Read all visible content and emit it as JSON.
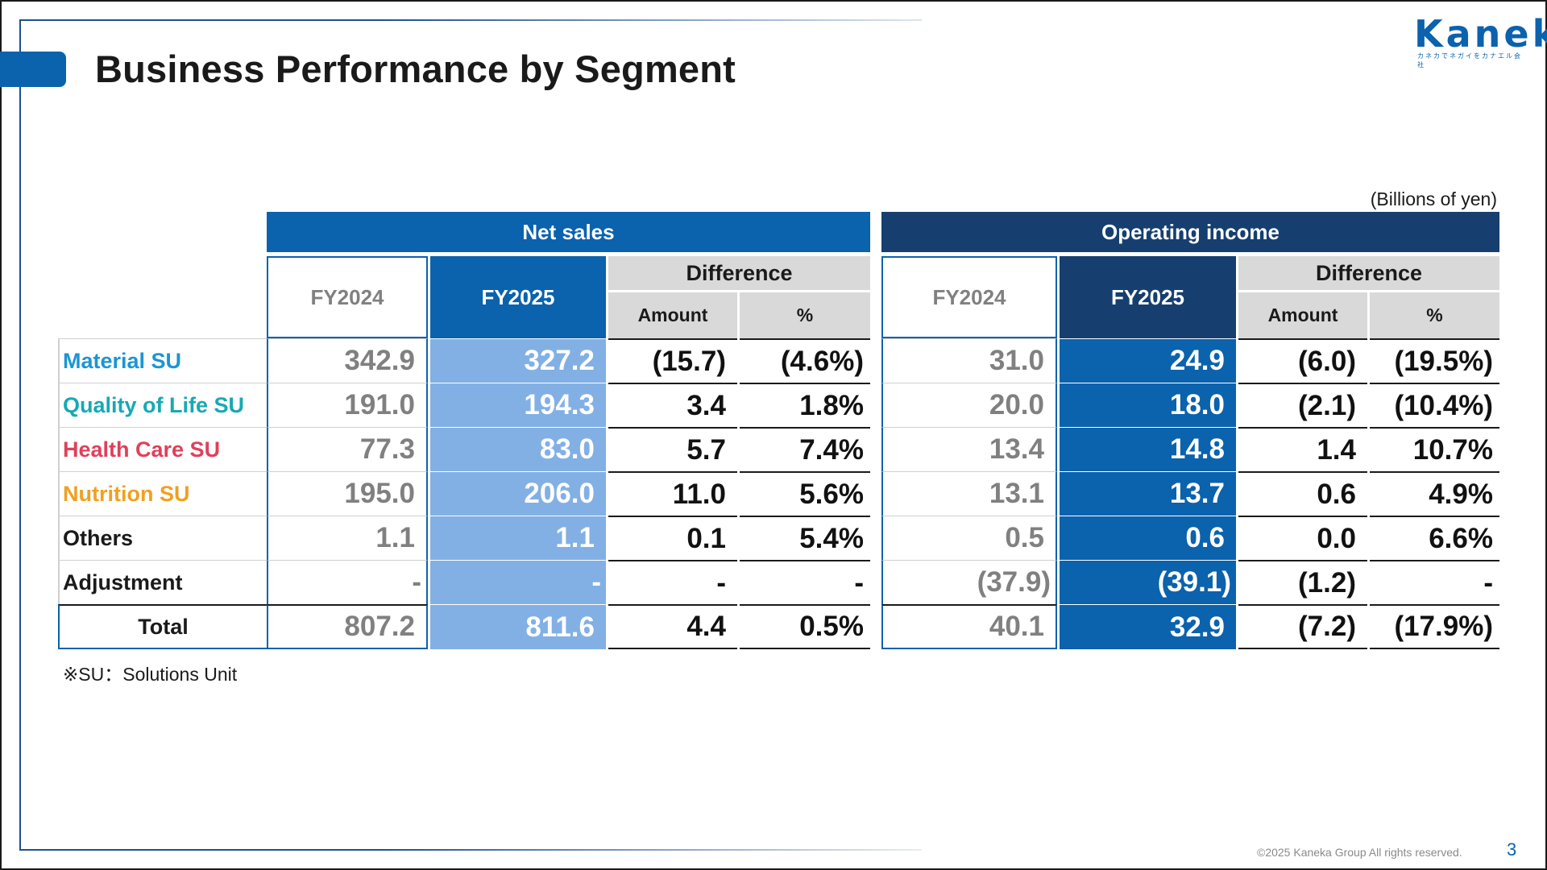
{
  "header": {
    "title": "Business Performance by Segment",
    "logo_text": "Kaneka",
    "logo_subtext": "カネカでネガイをカナエル会社"
  },
  "unit_note": "(Billions of yen)",
  "table": {
    "groups": {
      "net_sales": "Net sales",
      "operating_income": "Operating income"
    },
    "col_fy2024": "FY2024",
    "col_fy2025": "FY2025",
    "col_difference": "Difference",
    "col_amount": "Amount",
    "col_pct": "%",
    "rows": [
      {
        "label": "Material SU",
        "label_color": "#1a96d4",
        "ns": [
          "342.9",
          "327.2",
          "(15.7)",
          "(4.6%)"
        ],
        "oi": [
          "31.0",
          "24.9",
          "(6.0)",
          "(19.5%)"
        ]
      },
      {
        "label": "Quality of Life SU",
        "label_color": "#17a9b4",
        "ns": [
          "191.0",
          "194.3",
          "3.4",
          "1.8%"
        ],
        "oi": [
          "20.0",
          "18.0",
          "(2.1)",
          "(10.4%)"
        ]
      },
      {
        "label": "Health Care SU",
        "label_color": "#e0405a",
        "ns": [
          "77.3",
          "83.0",
          "5.7",
          "7.4%"
        ],
        "oi": [
          "13.4",
          "14.8",
          "1.4",
          "10.7%"
        ]
      },
      {
        "label": "Nutrition SU",
        "label_color": "#f0a020",
        "ns": [
          "195.0",
          "206.0",
          "11.0",
          "5.6%"
        ],
        "oi": [
          "13.1",
          "13.7",
          "0.6",
          "4.9%"
        ]
      },
      {
        "label": "Others",
        "label_color": "#1a1a1a",
        "ns": [
          "1.1",
          "1.1",
          "0.1",
          "5.4%"
        ],
        "oi": [
          "0.5",
          "0.6",
          "0.0",
          "6.6%"
        ]
      },
      {
        "label": "Adjustment",
        "label_color": "#1a1a1a",
        "ns": [
          "-",
          "-",
          "-",
          "-"
        ],
        "oi": [
          "(37.9)",
          "(39.1)",
          "(1.2)",
          "-"
        ]
      },
      {
        "label": "Total",
        "label_color": "#1a1a1a",
        "ns": [
          "807.2",
          "811.6",
          "4.4",
          "0.5%"
        ],
        "oi": [
          "40.1",
          "32.9",
          "(7.2)",
          "(17.9%)"
        ]
      }
    ]
  },
  "footnote": "※SU：Solutions Unit",
  "footer": {
    "copyright": "©2025 Kaneka Group All rights reserved.",
    "page_number": "3"
  }
}
